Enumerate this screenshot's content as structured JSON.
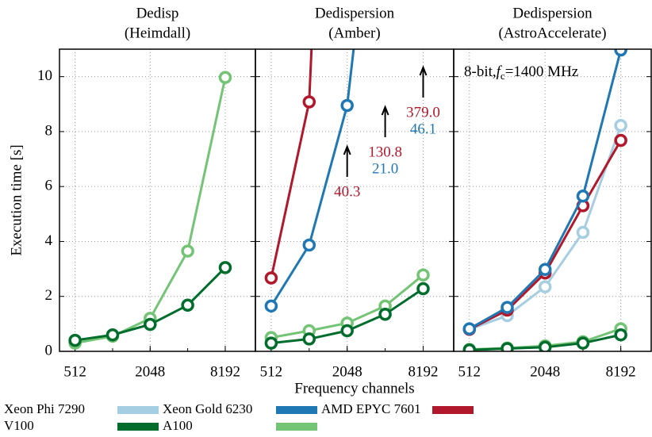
{
  "chart_data": [
    {
      "type": "line",
      "title": [
        "Dedisp",
        "(Heimdall)"
      ],
      "ylabel": "Execution time [s]",
      "x": [
        512,
        1024,
        2048,
        4096,
        8192
      ],
      "xlim": [
        384,
        14300
      ],
      "xticks": [
        512,
        2048,
        8192
      ],
      "ylim": [
        0,
        11
      ],
      "yticks": [
        0,
        2,
        4,
        6,
        8,
        10
      ],
      "grid": true,
      "series": [
        {
          "name": "V100",
          "color": "#74c476",
          "values": [
            0.3,
            0.55,
            1.2,
            3.65,
            9.97
          ]
        },
        {
          "name": "A100",
          "color": "#006d2c",
          "values": [
            0.4,
            0.6,
            0.98,
            1.68,
            3.05
          ]
        }
      ]
    },
    {
      "type": "line",
      "title": [
        "Dedispersion",
        "(Amber)"
      ],
      "xlabel": "Frequency channels",
      "x": [
        512,
        1024,
        2048,
        4096,
        8192
      ],
      "xlim": [
        384,
        14300
      ],
      "xticks": [
        512,
        2048,
        8192
      ],
      "ylim": [
        0,
        11
      ],
      "yticks": [
        0,
        2,
        4,
        6,
        8,
        10
      ],
      "grid": true,
      "series": [
        {
          "name": "AMD EPYC 7601",
          "color": "#b2182b",
          "values": [
            2.67,
            9.08,
            40.3,
            130.8,
            379
          ],
          "value_labels": [
            null,
            null,
            "40.3",
            "130.8",
            "379.0"
          ]
        },
        {
          "name": "Xeon Gold 6230",
          "color": "#1f78b4",
          "values": [
            1.65,
            3.87,
            8.95,
            21,
            46.1
          ],
          "value_labels": [
            null,
            null,
            null,
            "21.0",
            "46.1"
          ]
        },
        {
          "name": "V100",
          "color": "#74c476",
          "values": [
            0.5,
            0.75,
            1.03,
            1.65,
            2.78
          ]
        },
        {
          "name": "A100",
          "color": "#006d2c",
          "values": [
            0.3,
            0.45,
            0.75,
            1.35,
            2.28
          ]
        }
      ]
    },
    {
      "type": "line",
      "title": [
        "Dedispersion",
        "(AstroAccelerate)"
      ],
      "annotation": {
        "text": "8-bit,",
        "var": "f",
        "sub": "c",
        "rest": "=1400 MHz"
      },
      "x": [
        512,
        1024,
        2048,
        4096,
        8192
      ],
      "xlim": [
        384,
        14300
      ],
      "xticks": [
        512,
        2048,
        8192
      ],
      "ylim": [
        0,
        11
      ],
      "yticks": [
        0,
        2,
        4,
        6,
        8,
        10
      ],
      "grid": true,
      "series": [
        {
          "name": "Xeon Phi 7290",
          "color": "#a6cee3",
          "values": [
            0.8,
            1.3,
            2.35,
            4.33,
            8.22
          ]
        },
        {
          "name": "AMD EPYC 7601",
          "color": "#b2182b",
          "values": [
            0.8,
            1.5,
            2.85,
            5.3,
            7.68
          ]
        },
        {
          "name": "Xeon Gold 6230",
          "color": "#1f78b4",
          "values": [
            0.82,
            1.6,
            2.98,
            5.65,
            10.97
          ]
        },
        {
          "name": "V100",
          "color": "#74c476",
          "values": [
            0.07,
            0.12,
            0.2,
            0.35,
            0.82
          ]
        },
        {
          "name": "A100",
          "color": "#006d2c",
          "values": [
            0.05,
            0.1,
            0.15,
            0.3,
            0.6
          ]
        }
      ]
    }
  ]
}
